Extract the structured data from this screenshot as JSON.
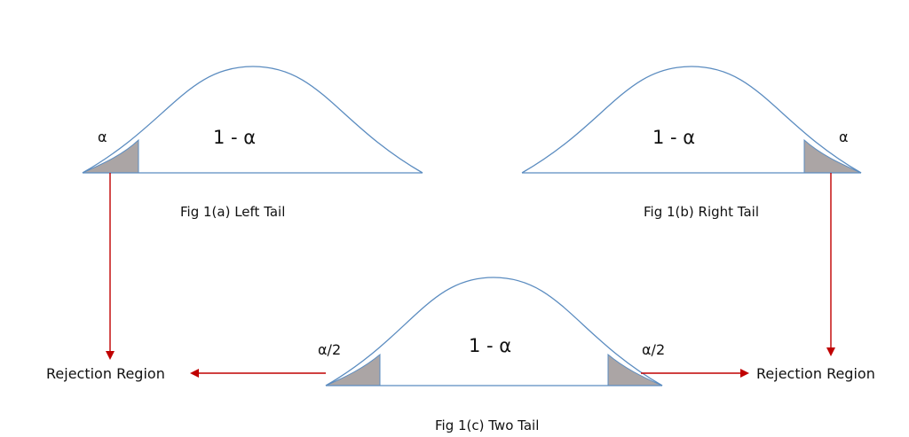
{
  "figures": {
    "left": {
      "center_label": "1 - α",
      "tail_label": "α",
      "caption": "Fig 1(a) Left Tail"
    },
    "right": {
      "center_label": "1 - α",
      "tail_label": "α",
      "caption": "Fig 1(b) Right Tail"
    },
    "two": {
      "center_label": "1 - α",
      "left_tail_label": "α/2",
      "right_tail_label": "α/2",
      "caption": "Fig 1(c) Two Tail"
    }
  },
  "rejection": {
    "left_label": "Rejection Region",
    "right_label": "Rejection Region"
  },
  "colors": {
    "curve": "#5b8cc0",
    "shade": "#aba5a5",
    "arrow": "#c00000"
  }
}
